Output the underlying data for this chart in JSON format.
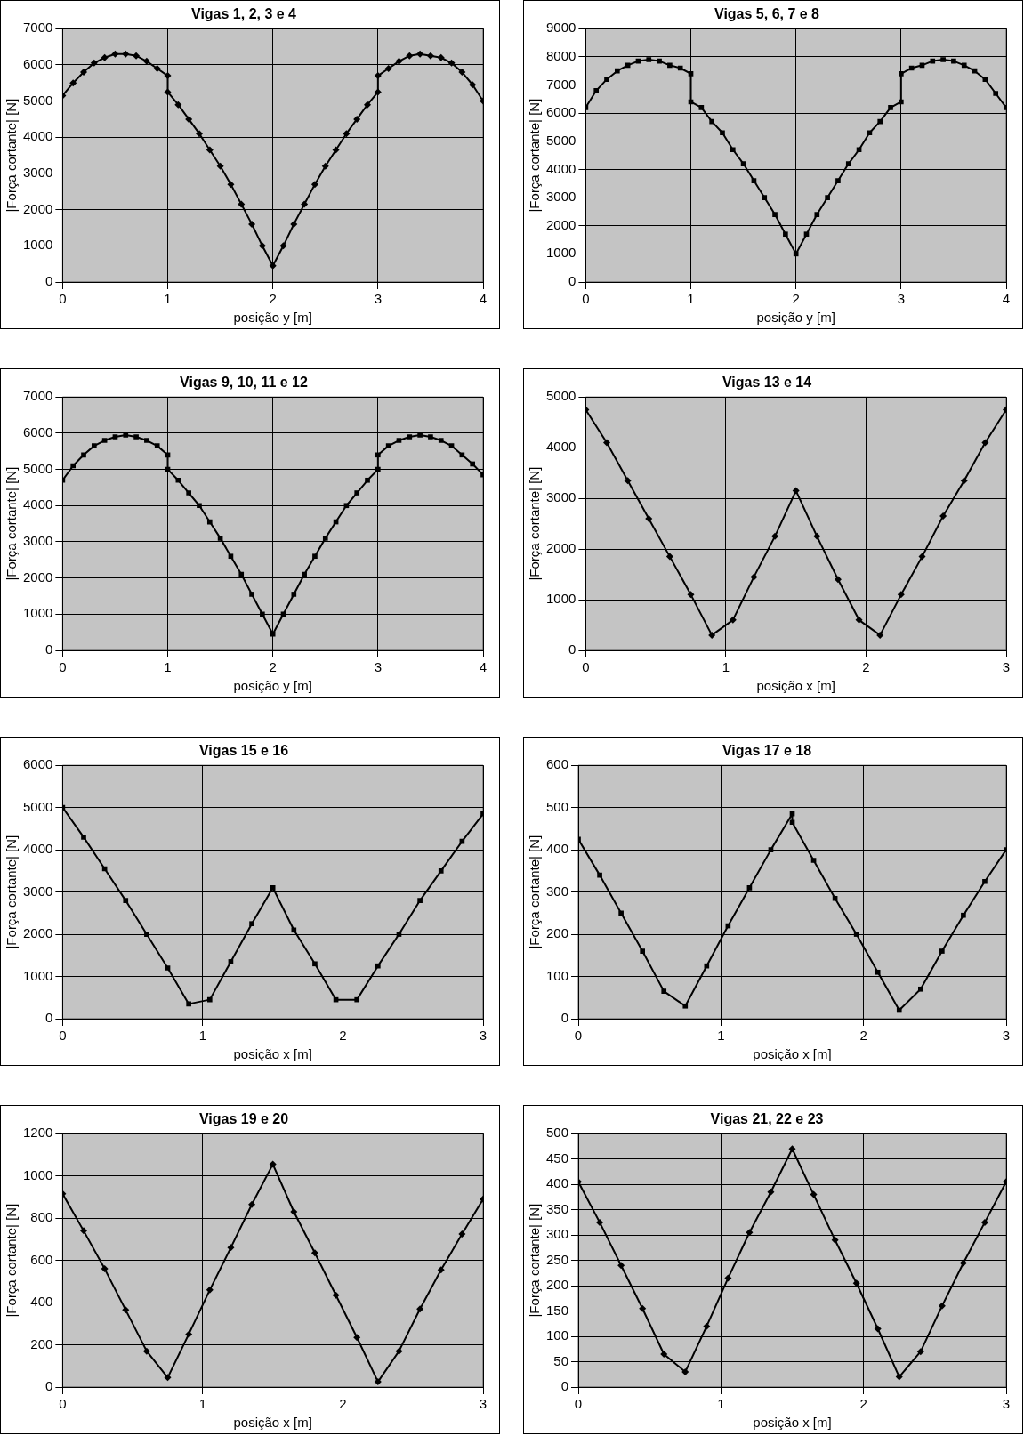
{
  "chart_data": [
    {
      "type": "line",
      "title": "Vigas 1, 2, 3 e 4",
      "xlabel": "posição y [m]",
      "ylabel": "|Força cortante| [N]",
      "marker": "diamond",
      "grid": true,
      "xlim": [
        0,
        4
      ],
      "xticks": [
        0,
        1,
        2,
        3,
        4
      ],
      "ylim": [
        0,
        7000
      ],
      "yticks": [
        0,
        1000,
        2000,
        3000,
        4000,
        5000,
        6000,
        7000
      ],
      "x": [
        0,
        0.1,
        0.2,
        0.3,
        0.4,
        0.5,
        0.6,
        0.7,
        0.8,
        0.9,
        1,
        1,
        1.1,
        1.2,
        1.3,
        1.4,
        1.5,
        1.6,
        1.7,
        1.8,
        1.9,
        2,
        2.1,
        2.2,
        2.3,
        2.4,
        2.5,
        2.6,
        2.7,
        2.8,
        2.9,
        3,
        3,
        3.1,
        3.2,
        3.3,
        3.4,
        3.5,
        3.6,
        3.7,
        3.8,
        3.9,
        4
      ],
      "series": [
        {
          "color": "#000000",
          "values": [
            5150,
            5500,
            5800,
            6050,
            6200,
            6300,
            6300,
            6250,
            6100,
            5900,
            5700,
            5250,
            4900,
            4500,
            4100,
            3650,
            3200,
            2700,
            2150,
            1600,
            1000,
            450,
            1000,
            1600,
            2150,
            2700,
            3200,
            3650,
            4100,
            4500,
            4900,
            5250,
            5700,
            5900,
            6100,
            6250,
            6300,
            6250,
            6200,
            6050,
            5800,
            5450,
            5000
          ]
        }
      ]
    },
    {
      "type": "line",
      "title": "Vigas 5, 6, 7 e 8",
      "xlabel": "posição y [m]",
      "ylabel": "|Força cortante| [N]",
      "marker": "square",
      "grid": true,
      "xlim": [
        0,
        4
      ],
      "xticks": [
        0,
        1,
        2,
        3,
        4
      ],
      "ylim": [
        0,
        9000
      ],
      "yticks": [
        0,
        1000,
        2000,
        3000,
        4000,
        5000,
        6000,
        7000,
        8000,
        9000
      ],
      "x": [
        0,
        0.1,
        0.2,
        0.3,
        0.4,
        0.5,
        0.6,
        0.7,
        0.8,
        0.9,
        1,
        1,
        1.1,
        1.2,
        1.3,
        1.4,
        1.5,
        1.6,
        1.7,
        1.8,
        1.9,
        2,
        2.1,
        2.2,
        2.3,
        2.4,
        2.5,
        2.6,
        2.7,
        2.8,
        2.9,
        3,
        3,
        3.1,
        3.2,
        3.3,
        3.4,
        3.5,
        3.6,
        3.7,
        3.8,
        3.9,
        4
      ],
      "series": [
        {
          "color": "#000000",
          "values": [
            6200,
            6800,
            7200,
            7500,
            7700,
            7850,
            7900,
            7850,
            7700,
            7600,
            7400,
            6400,
            6200,
            5700,
            5300,
            4700,
            4200,
            3600,
            3000,
            2400,
            1700,
            1000,
            1700,
            2400,
            3000,
            3600,
            4200,
            4700,
            5300,
            5700,
            6200,
            6400,
            7400,
            7600,
            7700,
            7850,
            7900,
            7850,
            7700,
            7500,
            7200,
            6700,
            6200
          ]
        }
      ]
    },
    {
      "type": "line",
      "title": "Vigas 9, 10, 11 e 12",
      "xlabel": "posição y [m]",
      "ylabel": "|Força cortante| [N]",
      "marker": "square",
      "grid": true,
      "xlim": [
        0,
        4
      ],
      "xticks": [
        0,
        1,
        2,
        3,
        4
      ],
      "ylim": [
        0,
        7000
      ],
      "yticks": [
        0,
        1000,
        2000,
        3000,
        4000,
        5000,
        6000,
        7000
      ],
      "x": [
        0,
        0.1,
        0.2,
        0.3,
        0.4,
        0.5,
        0.6,
        0.7,
        0.8,
        0.9,
        1,
        1,
        1.1,
        1.2,
        1.3,
        1.4,
        1.5,
        1.6,
        1.7,
        1.8,
        1.9,
        2,
        2.1,
        2.2,
        2.3,
        2.4,
        2.5,
        2.6,
        2.7,
        2.8,
        2.9,
        3,
        3,
        3.1,
        3.2,
        3.3,
        3.4,
        3.5,
        3.6,
        3.7,
        3.8,
        3.9,
        4
      ],
      "series": [
        {
          "color": "#000000",
          "values": [
            4700,
            5100,
            5400,
            5650,
            5800,
            5900,
            5950,
            5900,
            5800,
            5650,
            5400,
            5000,
            4700,
            4350,
            4000,
            3550,
            3100,
            2600,
            2100,
            1550,
            1000,
            450,
            1000,
            1550,
            2100,
            2600,
            3100,
            3550,
            4000,
            4350,
            4700,
            5000,
            5400,
            5650,
            5800,
            5900,
            5950,
            5900,
            5800,
            5650,
            5400,
            5150,
            4850
          ]
        }
      ]
    },
    {
      "type": "line",
      "title": "Vigas 13 e 14",
      "xlabel": "posição x [m]",
      "ylabel": "|Força cortante| [N]",
      "marker": "diamond",
      "grid": true,
      "xlim": [
        0,
        3
      ],
      "xticks": [
        0,
        1,
        2,
        3
      ],
      "ylim": [
        0,
        5000
      ],
      "yticks": [
        0,
        1000,
        2000,
        3000,
        4000,
        5000
      ],
      "x": [
        0,
        0.15,
        0.3,
        0.45,
        0.6,
        0.75,
        0.9,
        1.05,
        1.2,
        1.35,
        1.5,
        1.65,
        1.8,
        1.95,
        2.1,
        2.25,
        2.4,
        2.55,
        2.7,
        2.85,
        3
      ],
      "series": [
        {
          "color": "#000000",
          "values": [
            4750,
            4100,
            3350,
            2600,
            1850,
            1100,
            300,
            600,
            1450,
            2250,
            3150,
            2250,
            1400,
            600,
            300,
            1100,
            1850,
            2650,
            3350,
            4100,
            4750
          ]
        }
      ]
    },
    {
      "type": "line",
      "title": "Vigas 15 e 16",
      "xlabel": "posição x [m]",
      "ylabel": "|Força cortante| [N]",
      "marker": "square",
      "grid": true,
      "xlim": [
        0,
        3
      ],
      "xticks": [
        0,
        1,
        2,
        3
      ],
      "ylim": [
        0,
        6000
      ],
      "yticks": [
        0,
        1000,
        2000,
        3000,
        4000,
        5000,
        6000
      ],
      "x": [
        0,
        0.15,
        0.3,
        0.45,
        0.6,
        0.75,
        0.9,
        1.05,
        1.2,
        1.35,
        1.5,
        1.65,
        1.8,
        1.95,
        2.1,
        2.25,
        2.4,
        2.55,
        2.7,
        2.85,
        3
      ],
      "series": [
        {
          "color": "#000000",
          "values": [
            5000,
            4300,
            3550,
            2800,
            2000,
            1200,
            350,
            450,
            1350,
            2250,
            3100,
            2100,
            1300,
            450,
            450,
            1250,
            2000,
            2800,
            3500,
            4200,
            4850
          ]
        }
      ]
    },
    {
      "type": "line",
      "title": "Vigas 17 e 18",
      "xlabel": "posição x [m]",
      "ylabel": "|Força cortante| [N]",
      "marker": "square",
      "grid": true,
      "xlim": [
        0,
        3
      ],
      "xticks": [
        0,
        1,
        2,
        3
      ],
      "ylim": [
        0,
        600
      ],
      "yticks": [
        0,
        100,
        200,
        300,
        400,
        500,
        600
      ],
      "x": [
        0,
        0.15,
        0.3,
        0.45,
        0.6,
        0.75,
        0.9,
        1.05,
        1.2,
        1.35,
        1.5,
        1.5,
        1.65,
        1.8,
        1.95,
        2.1,
        2.25,
        2.4,
        2.55,
        2.7,
        2.85,
        3
      ],
      "series": [
        {
          "color": "#000000",
          "values": [
            425,
            340,
            250,
            160,
            65,
            30,
            125,
            220,
            310,
            400,
            485,
            465,
            375,
            285,
            200,
            110,
            20,
            70,
            160,
            245,
            325,
            400
          ]
        }
      ]
    },
    {
      "type": "line",
      "title": "Vigas 19 e 20",
      "xlabel": "posição x [m]",
      "ylabel": "|Força cortante| [N]",
      "marker": "diamond",
      "grid": true,
      "xlim": [
        0,
        3
      ],
      "xticks": [
        0,
        1,
        2,
        3
      ],
      "ylim": [
        0,
        1200
      ],
      "yticks": [
        0,
        200,
        400,
        600,
        800,
        1000,
        1200
      ],
      "x": [
        0,
        0.15,
        0.3,
        0.45,
        0.6,
        0.75,
        0.9,
        1.05,
        1.2,
        1.35,
        1.5,
        1.65,
        1.8,
        1.95,
        2.1,
        2.25,
        2.4,
        2.55,
        2.7,
        2.85,
        3
      ],
      "series": [
        {
          "color": "#000000",
          "values": [
            915,
            740,
            560,
            365,
            170,
            45,
            250,
            460,
            660,
            865,
            1055,
            830,
            635,
            435,
            235,
            25,
            170,
            370,
            555,
            725,
            890
          ]
        }
      ]
    },
    {
      "type": "line",
      "title": "Vigas 21, 22 e 23",
      "xlabel": "posição x [m]",
      "ylabel": "|Força cortante| [N]",
      "marker": "diamond",
      "grid": true,
      "xlim": [
        0,
        3
      ],
      "xticks": [
        0,
        1,
        2,
        3
      ],
      "ylim": [
        0,
        500
      ],
      "yticks": [
        0,
        50,
        100,
        150,
        200,
        250,
        300,
        350,
        400,
        450,
        500
      ],
      "x": [
        0,
        0.15,
        0.3,
        0.45,
        0.6,
        0.75,
        0.9,
        1.05,
        1.2,
        1.35,
        1.5,
        1.65,
        1.8,
        1.95,
        2.1,
        2.25,
        2.4,
        2.55,
        2.7,
        2.85,
        3
      ],
      "series": [
        {
          "color": "#000000",
          "values": [
            405,
            325,
            240,
            155,
            65,
            30,
            120,
            215,
            305,
            385,
            470,
            380,
            290,
            205,
            115,
            20,
            70,
            160,
            245,
            325,
            405
          ]
        }
      ]
    }
  ]
}
